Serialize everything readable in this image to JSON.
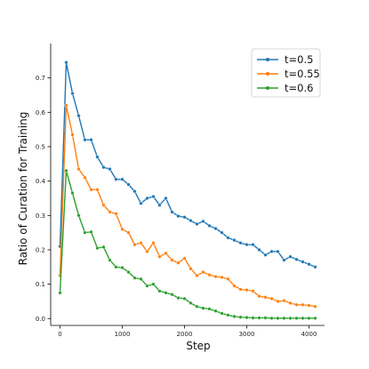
{
  "chart_data": {
    "type": "line",
    "title": "",
    "xlabel": "Step",
    "ylabel": "Ratio of Curation for Training",
    "xlim": [
      -150,
      4250
    ],
    "ylim": [
      -0.02,
      0.8
    ],
    "xticks": [
      0,
      1000,
      2000,
      3000,
      4000
    ],
    "yticks": [
      0.0,
      0.1,
      0.2,
      0.3,
      0.4,
      0.5,
      0.6,
      0.7
    ],
    "grid": false,
    "legend_position": "top-right",
    "markers": true,
    "x": [
      0,
      100,
      200,
      300,
      400,
      500,
      600,
      700,
      800,
      900,
      1000,
      1100,
      1200,
      1300,
      1400,
      1500,
      1600,
      1700,
      1800,
      1900,
      2000,
      2100,
      2200,
      2300,
      2400,
      2500,
      2600,
      2700,
      2800,
      2900,
      3000,
      3100,
      3200,
      3300,
      3400,
      3500,
      3600,
      3700,
      3800,
      3900,
      4000,
      4100
    ],
    "series": [
      {
        "name": "t=0.5",
        "color": "#1f77b4",
        "values": [
          0.21,
          0.745,
          0.655,
          0.59,
          0.52,
          0.52,
          0.47,
          0.44,
          0.435,
          0.405,
          0.405,
          0.39,
          0.37,
          0.335,
          0.35,
          0.355,
          0.33,
          0.35,
          0.31,
          0.298,
          0.295,
          0.285,
          0.275,
          0.283,
          0.27,
          0.262,
          0.25,
          0.235,
          0.228,
          0.22,
          0.215,
          0.215,
          0.2,
          0.185,
          0.195,
          0.195,
          0.17,
          0.18,
          0.172,
          0.165,
          0.158,
          0.15
        ]
      },
      {
        "name": "t=0.55",
        "color": "#ff7f0e",
        "values": [
          0.125,
          0.62,
          0.535,
          0.435,
          0.41,
          0.375,
          0.375,
          0.33,
          0.31,
          0.305,
          0.26,
          0.25,
          0.215,
          0.22,
          0.195,
          0.22,
          0.18,
          0.19,
          0.17,
          0.162,
          0.175,
          0.145,
          0.125,
          0.135,
          0.127,
          0.122,
          0.12,
          0.115,
          0.095,
          0.085,
          0.083,
          0.08,
          0.065,
          0.062,
          0.058,
          0.05,
          0.052,
          0.045,
          0.04,
          0.04,
          0.038,
          0.035
        ]
      },
      {
        "name": "t=0.6",
        "color": "#2ca02c",
        "values": [
          0.075,
          0.43,
          0.365,
          0.3,
          0.25,
          0.252,
          0.205,
          0.208,
          0.17,
          0.15,
          0.148,
          0.135,
          0.118,
          0.115,
          0.095,
          0.1,
          0.08,
          0.075,
          0.07,
          0.06,
          0.058,
          0.045,
          0.035,
          0.03,
          0.028,
          0.022,
          0.015,
          0.01,
          0.006,
          0.004,
          0.003,
          0.002,
          0.002,
          0.002,
          0.001,
          0.001,
          0.001,
          0.001,
          0.001,
          0.001,
          0.001,
          0.001
        ]
      }
    ]
  }
}
